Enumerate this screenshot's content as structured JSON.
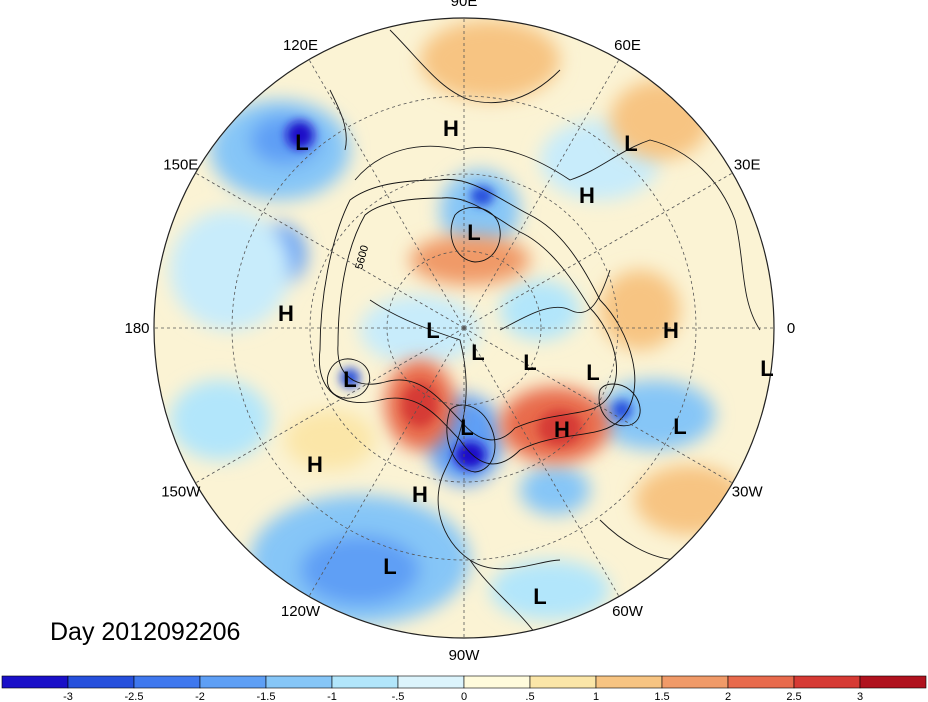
{
  "map": {
    "projection": "polar-stereographic-north",
    "day_label": "Day 2012092206",
    "longitude_labels": [
      {
        "text": "90E",
        "lon": 90
      },
      {
        "text": "60E",
        "lon": 60
      },
      {
        "text": "30E",
        "lon": 30
      },
      {
        "text": "0",
        "lon": 0
      },
      {
        "text": "30W",
        "lon": -30
      },
      {
        "text": "60W",
        "lon": -60
      },
      {
        "text": "90W",
        "lon": -90
      },
      {
        "text": "120W",
        "lon": -120
      },
      {
        "text": "150W",
        "lon": -150
      },
      {
        "text": "180",
        "lon": 180
      },
      {
        "text": "150E",
        "lon": 150
      },
      {
        "text": "120E",
        "lon": 120
      }
    ],
    "contour_label": "5600",
    "pressure_centers": [
      {
        "type": "H",
        "label": "H"
      },
      {
        "type": "L",
        "label": "L"
      },
      {
        "type": "H",
        "label": "H"
      },
      {
        "type": "L",
        "label": "L"
      },
      {
        "type": "L",
        "label": "L"
      },
      {
        "type": "H",
        "label": "H"
      },
      {
        "type": "L",
        "label": "L"
      },
      {
        "type": "L",
        "label": "L"
      },
      {
        "type": "L",
        "label": "L"
      },
      {
        "type": "L",
        "label": "L"
      },
      {
        "type": "H",
        "label": "H"
      },
      {
        "type": "L",
        "label": "L"
      },
      {
        "type": "L",
        "label": "L"
      },
      {
        "type": "L",
        "label": "L"
      },
      {
        "type": "H",
        "label": "H"
      },
      {
        "type": "L",
        "label": "L"
      },
      {
        "type": "H",
        "label": "H"
      },
      {
        "type": "H",
        "label": "H"
      },
      {
        "type": "L",
        "label": "L"
      },
      {
        "type": "L",
        "label": "L"
      },
      {
        "type": "L",
        "label": "L"
      },
      {
        "type": "H",
        "label": "H"
      }
    ]
  },
  "colorbar": {
    "colors": [
      "#1a10c8",
      "#2650dc",
      "#3f78ee",
      "#5e9ff5",
      "#86c6f7",
      "#b2e6fb",
      "#dcf4fc",
      "#fffbdc",
      "#fbe6a8",
      "#f7c482",
      "#f09a68",
      "#e86a4c",
      "#d63a34",
      "#b0121e"
    ],
    "ticks": [
      "-3",
      "-2.5",
      "-2",
      "-1.5",
      "-1",
      "-.5",
      "0",
      ".5",
      "1",
      "1.5",
      "2",
      "2.5",
      "3"
    ]
  }
}
